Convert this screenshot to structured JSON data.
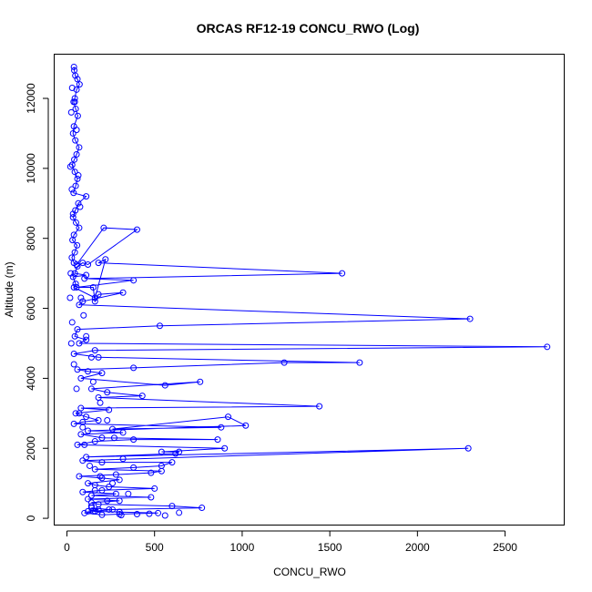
{
  "chart_data": {
    "type": "line",
    "title": "ORCAS RF12-19 CONCU_RWO (Log)",
    "xlabel": "CONCU_RWO",
    "ylabel": "Altitude (m)",
    "xlim": [
      -70,
      2840
    ],
    "ylim": [
      -180,
      13250
    ],
    "xticks": [
      0,
      500,
      1000,
      1500,
      2000,
      2500
    ],
    "yticks": [
      0,
      2000,
      4000,
      6000,
      8000,
      10000,
      12000
    ],
    "color": "#0000ff",
    "series": [
      {
        "x": [
          40,
          42,
          48,
          60,
          72,
          55,
          45,
          38,
          50,
          62,
          40,
          35,
          48,
          70,
          55,
          42,
          30,
          45,
          60,
          50,
          38,
          110,
          65,
          48,
          35,
          52,
          70,
          40,
          32,
          58,
          45,
          28,
          40,
          55,
          210,
          400,
          120,
          90,
          60,
          45,
          110,
          35,
          50,
          40,
          160,
          220,
          180,
          1570,
          100,
          380,
          55,
          150,
          160,
          180,
          320,
          90,
          70,
          2300,
          530,
          60,
          45,
          110,
          70,
          2740,
          160,
          40,
          180,
          1670,
          1240,
          380,
          60,
          120,
          200,
          80,
          560,
          760,
          140,
          230,
          430,
          180,
          1440,
          80,
          240,
          50,
          110,
          180,
          90,
          40,
          880,
          260,
          920,
          1020,
          120,
          320,
          80,
          200,
          860,
          380,
          160,
          60,
          900,
          540,
          640,
          620,
          110,
          2290,
          90,
          200,
          600,
          540,
          380,
          160,
          540,
          480,
          280,
          70,
          200,
          300,
          120,
          160,
          240,
          500,
          200,
          90,
          280,
          140,
          480,
          120,
          300,
          140,
          180,
          600,
          770,
          260,
          150,
          300,
          520,
          300,
          200,
          100,
          160,
          240,
          140,
          180,
          120
        ],
        "y": [
          12900,
          12800,
          12650,
          12550,
          12400,
          12250,
          12000,
          11900,
          11700,
          11500,
          11200,
          11000,
          10800,
          10600,
          10400,
          10250,
          10100,
          9900,
          9700,
          9500,
          9300,
          9200,
          9000,
          8800,
          8600,
          8450,
          8300,
          8100,
          7950,
          7800,
          7600,
          7450,
          7300,
          7250,
          8300,
          8250,
          7250,
          7300,
          7200,
          7000,
          6950,
          6900,
          6700,
          6600,
          6300,
          7400,
          7300,
          7000,
          6850,
          6800,
          6600,
          6600,
          6200,
          6400,
          6450,
          6200,
          6100,
          5700,
          5500,
          5400,
          5200,
          5100,
          5000,
          4900,
          4800,
          4700,
          4600,
          4450,
          4450,
          4300,
          4250,
          4200,
          4150,
          4000,
          3800,
          3900,
          3700,
          3600,
          3500,
          3450,
          3200,
          3150,
          3100,
          3000,
          2900,
          2800,
          2750,
          2700,
          2600,
          2550,
          2900,
          2650,
          2500,
          2450,
          2400,
          2300,
          2250,
          2250,
          2200,
          2100,
          2000,
          1900,
          1900,
          1850,
          1750,
          2000,
          1650,
          1600,
          1600,
          1500,
          1450,
          1400,
          1350,
          1300,
          1250,
          1200,
          1150,
          1100,
          1000,
          950,
          900,
          850,
          800,
          750,
          700,
          650,
          600,
          550,
          500,
          450,
          400,
          350,
          300,
          250,
          200,
          180,
          150,
          120,
          100,
          150,
          200,
          250,
          300,
          250,
          200
        ],
        "noise": [
          {
            "x": 30,
            "y": 12300
          },
          {
            "x": 45,
            "y": 11900
          },
          {
            "x": 25,
            "y": 11600
          },
          {
            "x": 55,
            "y": 11100
          },
          {
            "x": 20,
            "y": 10050
          },
          {
            "x": 65,
            "y": 9800
          },
          {
            "x": 28,
            "y": 9400
          },
          {
            "x": 75,
            "y": 8900
          },
          {
            "x": 35,
            "y": 8700
          },
          {
            "x": 22,
            "y": 7000
          },
          {
            "x": 80,
            "y": 6300
          },
          {
            "x": 18,
            "y": 6300
          },
          {
            "x": 95,
            "y": 5800
          },
          {
            "x": 30,
            "y": 5600
          },
          {
            "x": 110,
            "y": 5200
          },
          {
            "x": 25,
            "y": 5000
          },
          {
            "x": 140,
            "y": 4600
          },
          {
            "x": 40,
            "y": 4400
          },
          {
            "x": 150,
            "y": 3900
          },
          {
            "x": 55,
            "y": 3700
          },
          {
            "x": 190,
            "y": 3300
          },
          {
            "x": 70,
            "y": 3000
          },
          {
            "x": 230,
            "y": 2800
          },
          {
            "x": 90,
            "y": 2600
          },
          {
            "x": 270,
            "y": 2300
          },
          {
            "x": 100,
            "y": 2100
          },
          {
            "x": 320,
            "y": 1700
          },
          {
            "x": 130,
            "y": 1500
          },
          {
            "x": 190,
            "y": 1200
          },
          {
            "x": 260,
            "y": 1000
          },
          {
            "x": 160,
            "y": 800
          },
          {
            "x": 350,
            "y": 700
          },
          {
            "x": 230,
            "y": 500
          },
          {
            "x": 140,
            "y": 350
          },
          {
            "x": 300,
            "y": 180
          },
          {
            "x": 400,
            "y": 120
          },
          {
            "x": 470,
            "y": 130
          },
          {
            "x": 560,
            "y": 80
          },
          {
            "x": 640,
            "y": 160
          },
          {
            "x": 310,
            "y": 90
          }
        ]
      }
    ]
  }
}
